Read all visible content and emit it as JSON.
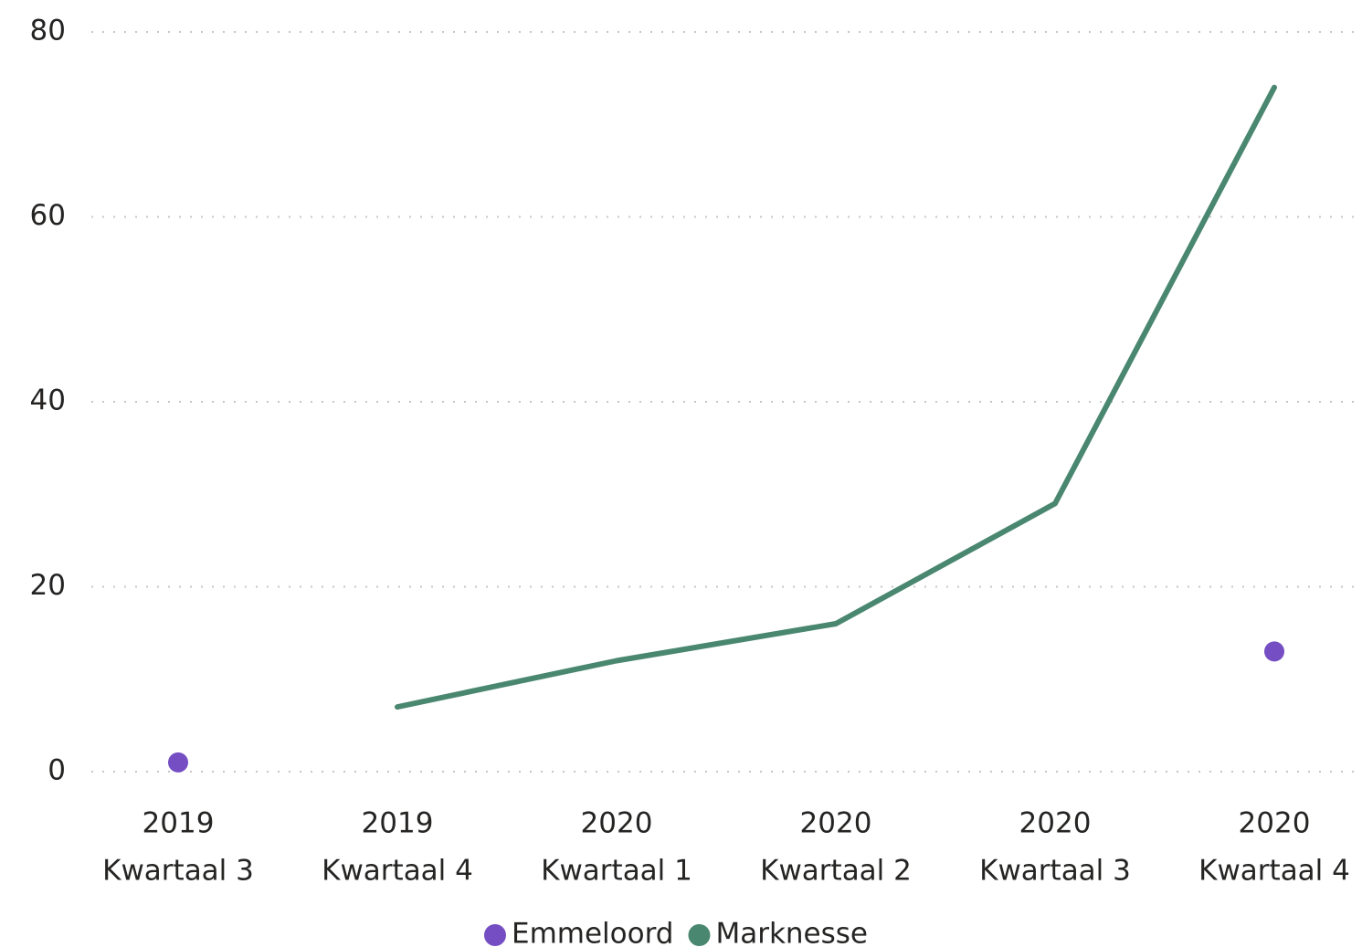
{
  "chart_data": {
    "type": "line",
    "categories": [
      [
        "2019",
        "Kwartaal 3"
      ],
      [
        "2019",
        "Kwartaal 4"
      ],
      [
        "2020",
        "Kwartaal 1"
      ],
      [
        "2020",
        "Kwartaal 2"
      ],
      [
        "2020",
        "Kwartaal 3"
      ],
      [
        "2020",
        "Kwartaal 4"
      ]
    ],
    "series": [
      {
        "name": "Emmeloord",
        "color": "#744ec2",
        "values": [
          1,
          null,
          null,
          null,
          null,
          13
        ]
      },
      {
        "name": "Marknesse",
        "color": "#4a8770",
        "values": [
          null,
          7,
          12,
          16,
          29,
          74
        ]
      }
    ],
    "ylim": [
      0,
      80
    ],
    "yticks": [
      0,
      20,
      40,
      60,
      80
    ],
    "grid": true,
    "legend": "bottom"
  }
}
